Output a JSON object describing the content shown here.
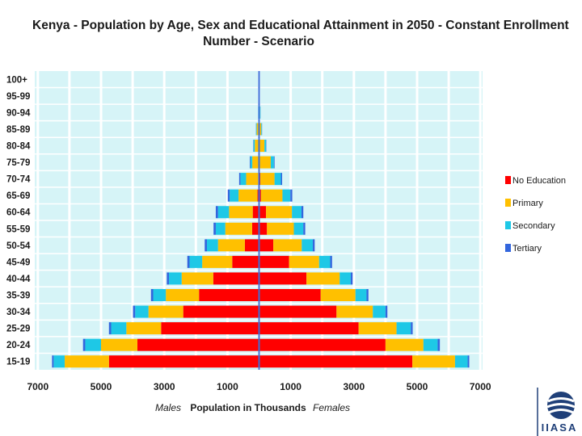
{
  "chart_data": {
    "type": "bar",
    "subtype": "population-pyramid",
    "title_line1": "Kenya - Population by Age, Sex and Educational Attainment  in 2050  - Constant Enrollment",
    "title_line2": "Number - Scenario",
    "xlabel": "Population in Thousands",
    "left_label": "Males",
    "right_label": "Females",
    "xlim": [
      -7000,
      7000
    ],
    "xticks": [
      -7000,
      -5000,
      -3000,
      -1000,
      1000,
      3000,
      5000,
      7000
    ],
    "xtick_labels": [
      "7000",
      "5000",
      "3000",
      "1000",
      "1000",
      "3000",
      "5000",
      "7000"
    ],
    "grid": "vertical",
    "legend_position": "right",
    "age_groups": [
      "100+",
      "95-99",
      "90-94",
      "85-89",
      "80-84",
      "75-79",
      "70-74",
      "65-69",
      "60-64",
      "55-59",
      "50-54",
      "45-49",
      "40-44",
      "35-39",
      "30-34",
      "25-29",
      "20-24",
      "15-19"
    ],
    "series": [
      {
        "name": "No Education",
        "color": "#ff0000",
        "males": [
          0,
          0,
          0,
          15,
          15,
          15,
          30,
          50,
          200,
          220,
          450,
          850,
          1450,
          1900,
          2400,
          3100,
          3850,
          4750
        ],
        "females": [
          0,
          0,
          0,
          10,
          20,
          20,
          40,
          60,
          220,
          250,
          450,
          950,
          1500,
          1950,
          2450,
          3150,
          4000,
          4850
        ]
      },
      {
        "name": "Primary",
        "color": "#ffc000",
        "males": [
          0,
          10,
          20,
          60,
          120,
          200,
          380,
          600,
          750,
          850,
          850,
          950,
          1000,
          1050,
          1100,
          1100,
          1150,
          1400
        ],
        "females": [
          0,
          10,
          30,
          60,
          150,
          350,
          450,
          680,
          820,
          850,
          900,
          950,
          1050,
          1100,
          1150,
          1200,
          1200,
          1350
        ]
      },
      {
        "name": "Secondary",
        "color": "#1ec8e6",
        "males": [
          5,
          5,
          10,
          20,
          40,
          60,
          180,
          280,
          350,
          300,
          350,
          400,
          400,
          400,
          420,
          480,
          500,
          350
        ],
        "females": [
          5,
          5,
          15,
          20,
          50,
          100,
          200,
          250,
          300,
          300,
          350,
          350,
          350,
          350,
          400,
          450,
          450,
          400
        ]
      },
      {
        "name": "Tertiary",
        "color": "#3366dd",
        "males": [
          0,
          0,
          0,
          5,
          10,
          20,
          40,
          60,
          70,
          70,
          70,
          70,
          70,
          70,
          70,
          70,
          70,
          50
        ],
        "females": [
          0,
          0,
          0,
          5,
          10,
          20,
          40,
          60,
          60,
          60,
          60,
          60,
          60,
          60,
          60,
          60,
          70,
          50
        ]
      }
    ]
  },
  "branding": {
    "logo_text": "IIASA",
    "logo_color": "#1f3f78"
  }
}
